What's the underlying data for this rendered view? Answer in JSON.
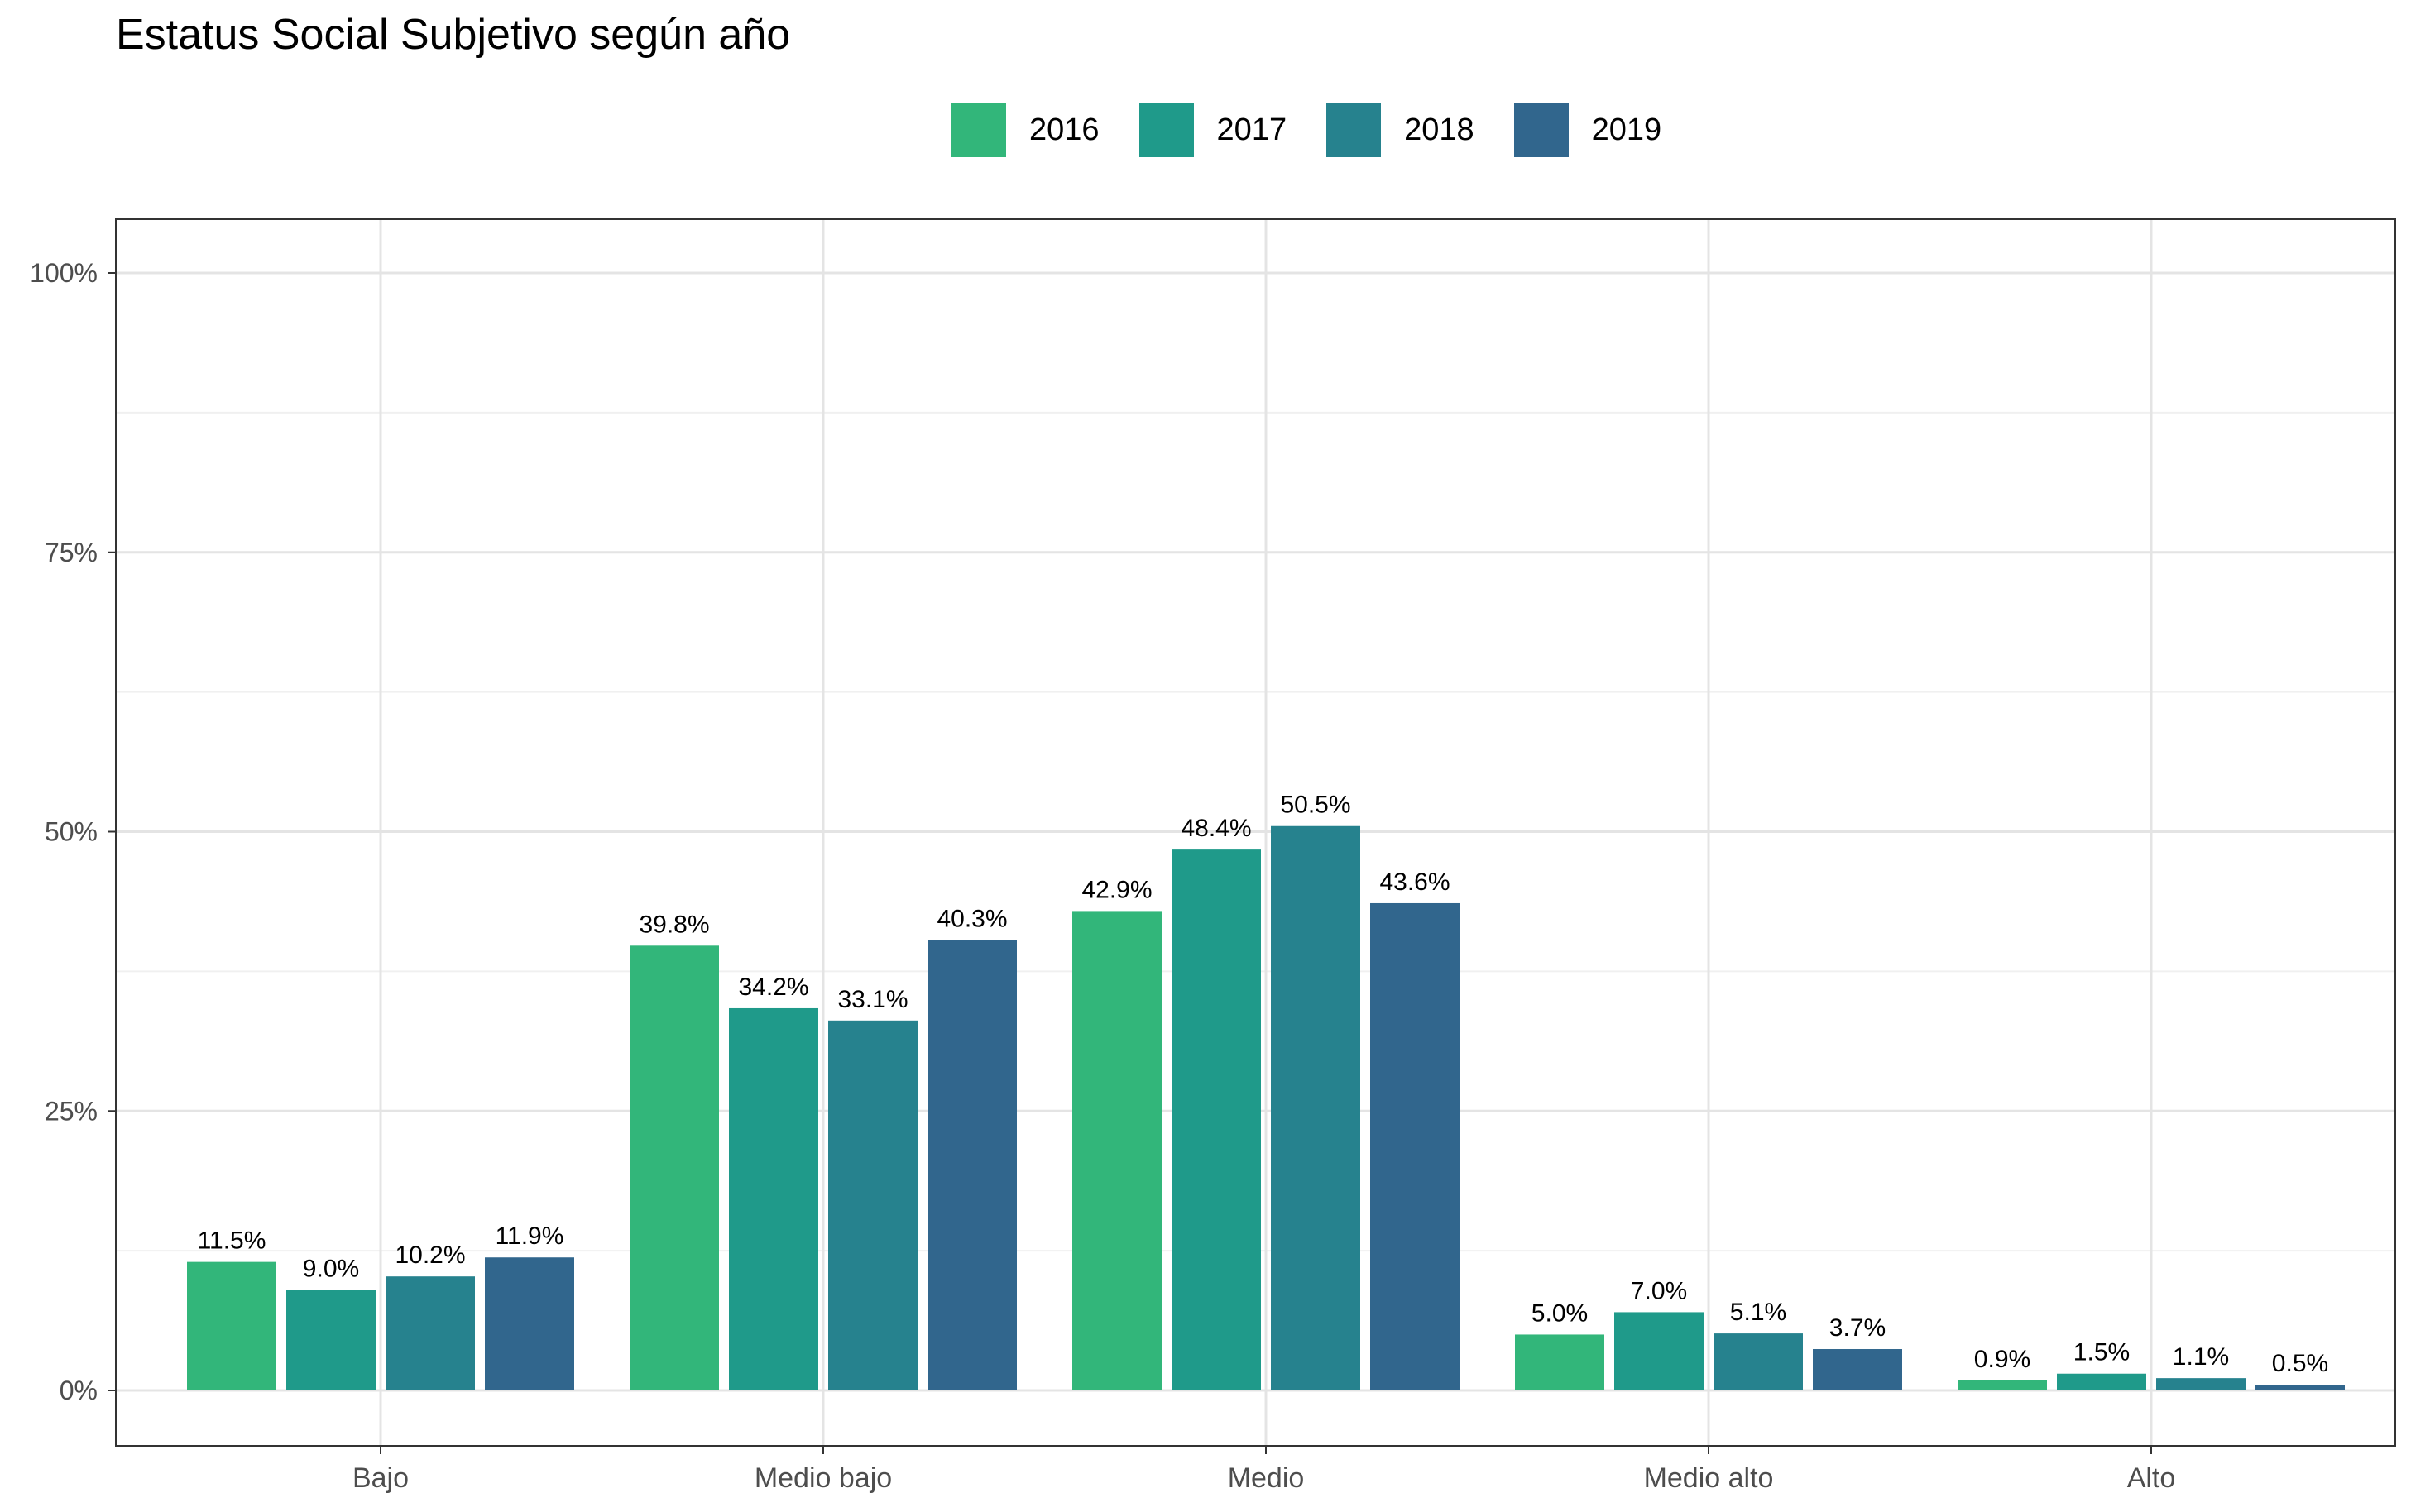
{
  "chart_data": {
    "type": "bar",
    "title": "Estatus Social Subjetivo según año",
    "xlabel": "",
    "ylabel": "",
    "categories": [
      "Bajo",
      "Medio bajo",
      "Medio",
      "Medio alto",
      "Alto"
    ],
    "series": [
      {
        "name": "2016",
        "color": "#32b67a",
        "values": [
          11.5,
          39.8,
          42.9,
          5.0,
          0.9
        ],
        "labels": [
          "11.5%",
          "39.8%",
          "42.9%",
          "5.0%",
          "0.9%"
        ]
      },
      {
        "name": "2017",
        "color": "#1f9a8a",
        "values": [
          9.0,
          34.2,
          48.4,
          7.0,
          1.5
        ],
        "labels": [
          "9.0%",
          "34.2%",
          "48.4%",
          "7.0%",
          "1.5%"
        ]
      },
      {
        "name": "2018",
        "color": "#26828e",
        "values": [
          10.2,
          33.1,
          50.5,
          5.1,
          1.1
        ],
        "labels": [
          "10.2%",
          "33.1%",
          "50.5%",
          "5.1%",
          "1.1%"
        ]
      },
      {
        "name": "2019",
        "color": "#31668d",
        "values": [
          11.9,
          40.3,
          43.6,
          3.7,
          0.5
        ],
        "labels": [
          "11.9%",
          "40.3%",
          "43.6%",
          "3.7%",
          "0.5%"
        ]
      }
    ],
    "yticks": [
      0,
      25,
      50,
      75,
      100
    ],
    "ytick_labels": [
      "0%",
      "25%",
      "50%",
      "75%",
      "100%"
    ],
    "ylim": [
      -5,
      105
    ],
    "grid": true,
    "legend_position": "top"
  }
}
